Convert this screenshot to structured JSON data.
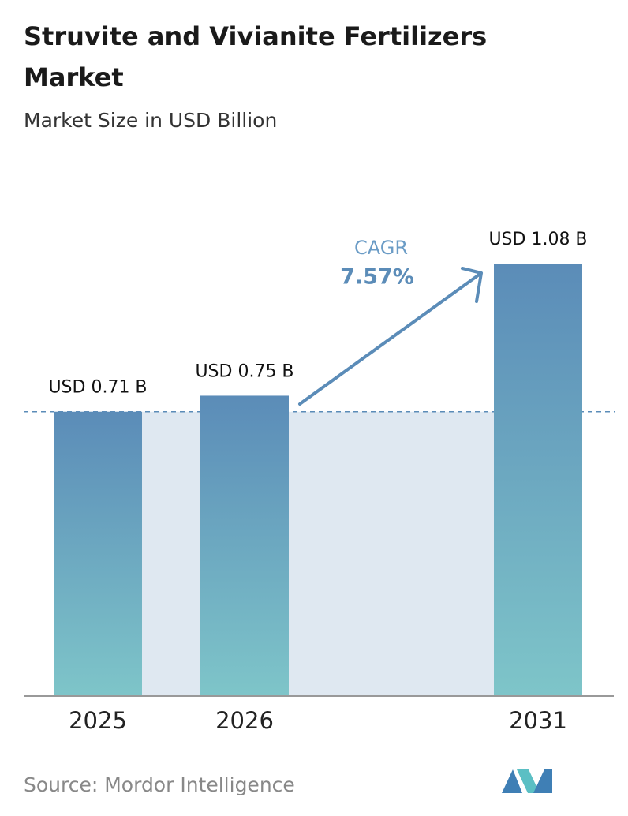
{
  "chart_data": {
    "type": "bar",
    "title": "Struvite and Vivianite Fertilizers Market",
    "subtitle": "Market Size in USD Billion",
    "categories": [
      "2025",
      "2026",
      "2031"
    ],
    "values": [
      0.71,
      0.75,
      1.08
    ],
    "value_labels": [
      "USD 0.71 B",
      "USD 0.75 B",
      "USD 1.08 B"
    ],
    "annotations": [
      "CAGR",
      "7.57%"
    ],
    "source": "Source: Mordor Intelligence"
  }
}
